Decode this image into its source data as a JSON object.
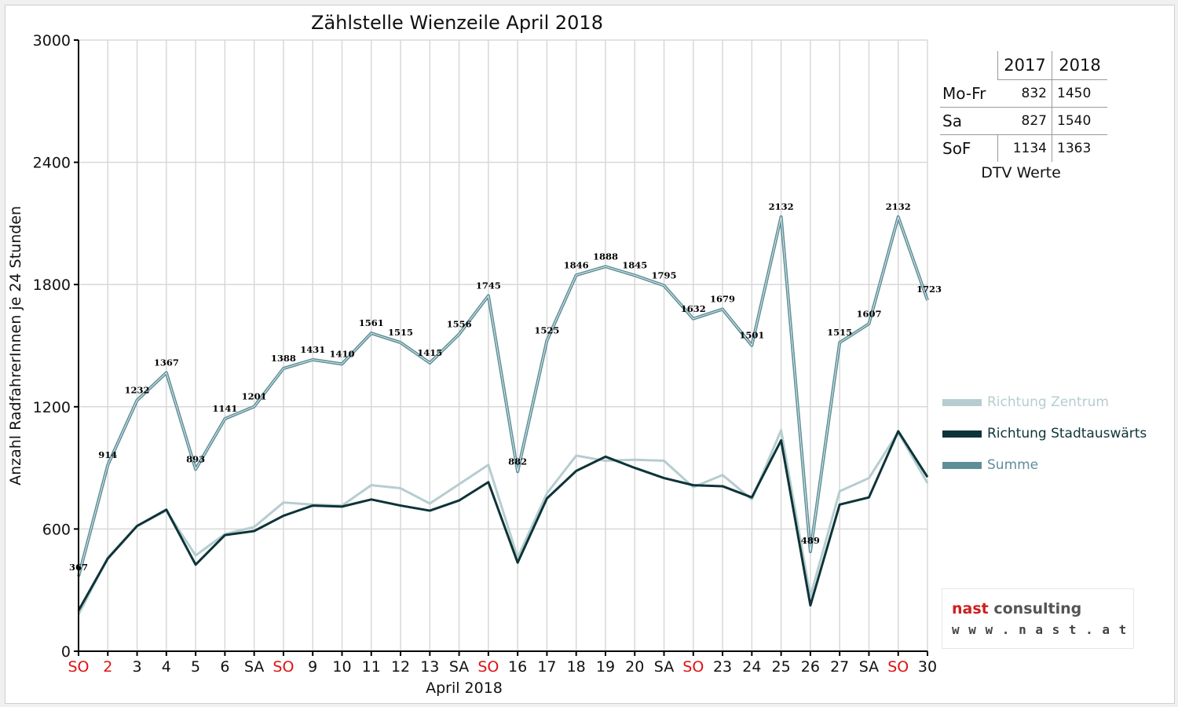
{
  "chart_data": {
    "type": "line",
    "title": "Zählstelle Wienzeile April 2018",
    "xlabel": "April 2018",
    "ylabel": "Anzahl RadfahrerInnen je 24 Stunden",
    "ylim": [
      0,
      3000
    ],
    "yticks": [
      0,
      600,
      1200,
      1800,
      2400,
      3000
    ],
    "grid": true,
    "legend_position": "right",
    "x": [
      1,
      2,
      3,
      4,
      5,
      6,
      7,
      8,
      9,
      10,
      11,
      12,
      13,
      14,
      15,
      16,
      17,
      18,
      19,
      20,
      21,
      22,
      23,
      24,
      25,
      26,
      27,
      28,
      29,
      30
    ],
    "x_tick_labels": [
      {
        "text": "SO",
        "red": true
      },
      {
        "text": "2",
        "red": true
      },
      {
        "text": "3",
        "red": false
      },
      {
        "text": "4",
        "red": false
      },
      {
        "text": "5",
        "red": false
      },
      {
        "text": "6",
        "red": false
      },
      {
        "text": "SA",
        "red": false
      },
      {
        "text": "SO",
        "red": true
      },
      {
        "text": "9",
        "red": false
      },
      {
        "text": "10",
        "red": false
      },
      {
        "text": "11",
        "red": false
      },
      {
        "text": "12",
        "red": false
      },
      {
        "text": "13",
        "red": false
      },
      {
        "text": "SA",
        "red": false
      },
      {
        "text": "SO",
        "red": true
      },
      {
        "text": "16",
        "red": false
      },
      {
        "text": "17",
        "red": false
      },
      {
        "text": "18",
        "red": false
      },
      {
        "text": "19",
        "red": false
      },
      {
        "text": "20",
        "red": false
      },
      {
        "text": "SA",
        "red": false
      },
      {
        "text": "SO",
        "red": true
      },
      {
        "text": "23",
        "red": false
      },
      {
        "text": "24",
        "red": false
      },
      {
        "text": "25",
        "red": false
      },
      {
        "text": "26",
        "red": false
      },
      {
        "text": "27",
        "red": false
      },
      {
        "text": "SA",
        "red": false
      },
      {
        "text": "SO",
        "red": true
      },
      {
        "text": "30",
        "red": false
      }
    ],
    "series": [
      {
        "name": "Richtung Zentrum",
        "color": "#b6cdd0",
        "values": [
          180,
          460,
          615,
          690,
          470,
          575,
          610,
          730,
          720,
          715,
          815,
          800,
          725,
          820,
          915,
          460,
          775,
          960,
          935,
          940,
          935,
          805,
          865,
          745,
          1085,
          270,
          785,
          850,
          1075,
          825
        ]
      },
      {
        "name": "Richtung Stadtauswärts",
        "color": "#0d3438",
        "values": [
          200,
          455,
          615,
          695,
          425,
          570,
          590,
          665,
          715,
          710,
          745,
          715,
          690,
          740,
          830,
          435,
          750,
          885,
          955,
          900,
          850,
          815,
          810,
          755,
          1035,
          225,
          720,
          755,
          1080,
          855
        ]
      },
      {
        "name": "Summe",
        "color": "#5e8f98",
        "values": [
          367,
          914,
          1232,
          1367,
          893,
          1141,
          1201,
          1388,
          1431,
          1410,
          1561,
          1515,
          1415,
          1556,
          1745,
          882,
          1525,
          1846,
          1888,
          1845,
          1795,
          1632,
          1679,
          1501,
          2132,
          489,
          1515,
          1607,
          2132,
          1723
        ]
      }
    ],
    "data_labels": [
      "367",
      "914",
      "1232",
      "1367",
      "893",
      "1141",
      "1201",
      "1388",
      "1431",
      "1410",
      "1561",
      "1515",
      "1415",
      "1556",
      "1745",
      "882",
      "1525",
      "1846",
      "1888",
      "1845",
      "1795",
      "1632",
      "1679",
      "1501",
      "2132",
      "489",
      "1515",
      "1607",
      "2132",
      "1723"
    ]
  },
  "dtv_table": {
    "headers": [
      "",
      "2017",
      "2018"
    ],
    "rows": [
      {
        "label": "Mo-Fr",
        "v2017": "832",
        "v2018": "1450"
      },
      {
        "label": "Sa",
        "v2017": "827",
        "v2018": "1540"
      },
      {
        "label": "SoF",
        "v2017": "1134",
        "v2018": "1363"
      }
    ],
    "caption": "DTV Werte"
  },
  "logo": {
    "line1_accent": "nast",
    "line1_rest": " consulting",
    "line2": "w w w . n a s t . a t"
  },
  "colors": {
    "weekend_red": "#e01010",
    "grid": "#d8d8d8",
    "axis": "#000000"
  }
}
